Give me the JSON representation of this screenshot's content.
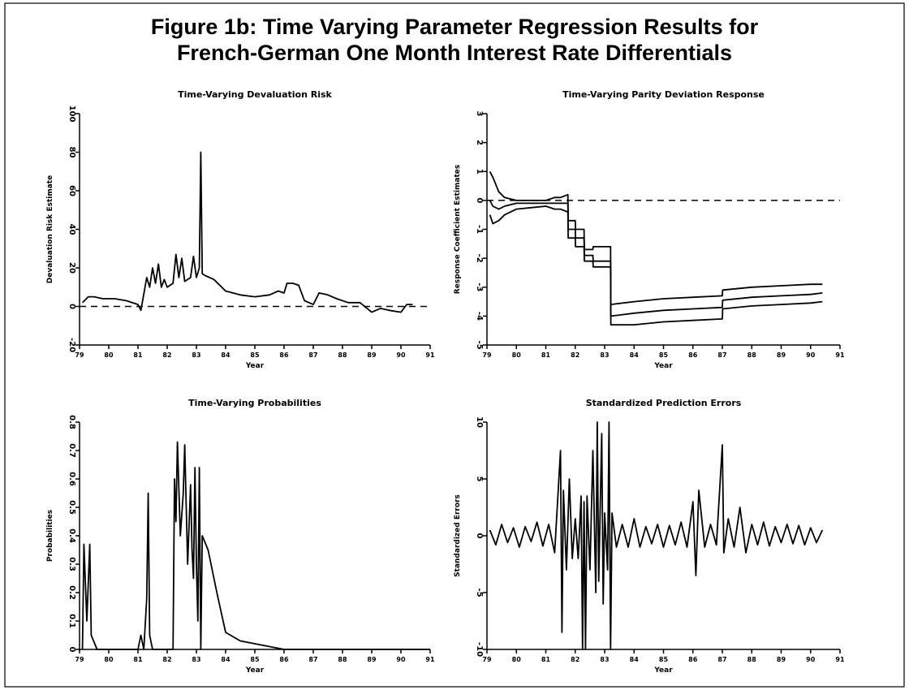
{
  "title": [
    "Figure 1b: Time Varying Parameter Regression Results for",
    "French-German One Month Interest Rate Differentials"
  ],
  "chart_data": [
    {
      "type": "line",
      "title": "Time-Varying Devaluation Risk",
      "x_label": "Year",
      "y_label": "Devaluation Risk Estimate",
      "xlim": [
        79,
        91
      ],
      "xticks": [
        79,
        80,
        81,
        82,
        83,
        84,
        85,
        86,
        87,
        88,
        89,
        90,
        91
      ],
      "ylim": [
        -20,
        100
      ],
      "yticks": [
        -20,
        0,
        20,
        40,
        60,
        80,
        100
      ],
      "hline": 0,
      "x": [
        79.1,
        79.3,
        79.5,
        79.8,
        80.2,
        80.6,
        81.0,
        81.1,
        81.3,
        81.4,
        81.5,
        81.6,
        81.7,
        81.8,
        81.9,
        82.0,
        82.2,
        82.3,
        82.4,
        82.5,
        82.6,
        82.8,
        82.9,
        83.0,
        83.1,
        83.15,
        83.2,
        83.3,
        83.6,
        84.0,
        84.5,
        85.0,
        85.5,
        85.8,
        86.0,
        86.1,
        86.3,
        86.5,
        86.7,
        87.0,
        87.2,
        87.5,
        87.8,
        88.2,
        88.6,
        89.0,
        89.3,
        89.6,
        90.0,
        90.2,
        90.4
      ],
      "series": [
        {
          "color": "#000000",
          "values": [
            2,
            5,
            5,
            4,
            4,
            3,
            1,
            -2,
            15,
            10,
            20,
            12,
            22,
            10,
            14,
            10,
            12,
            27,
            15,
            25,
            13,
            15,
            26,
            15,
            20,
            80,
            17,
            16,
            14,
            8,
            6,
            5,
            6,
            8,
            7,
            12,
            12,
            11,
            3,
            1,
            7,
            6,
            4,
            2,
            2,
            -3,
            -1,
            -2,
            -3,
            1,
            1
          ]
        }
      ]
    },
    {
      "type": "line",
      "title": "Time-Varying Parity Deviation Response",
      "x_label": "Year",
      "y_label": "Response Coefficient Estimates",
      "xlim": [
        79,
        91
      ],
      "xticks": [
        79,
        80,
        81,
        82,
        83,
        84,
        85,
        86,
        87,
        88,
        89,
        90,
        91
      ],
      "ylim": [
        -5,
        3
      ],
      "yticks": [
        -5,
        -4,
        -3,
        -2,
        -1,
        0,
        1,
        2,
        3
      ],
      "hline": 0,
      "x": [
        79.1,
        79.2,
        79.4,
        79.6,
        80.0,
        80.5,
        81.0,
        81.3,
        81.5,
        81.75,
        81.76,
        82.0,
        82.01,
        82.3,
        82.31,
        82.6,
        82.61,
        83.0,
        83.2,
        83.21,
        84.0,
        85.0,
        86.0,
        87.0,
        87.01,
        88.0,
        89.0,
        90.0,
        90.4
      ],
      "series": [
        {
          "color": "#000000",
          "values": [
            0,
            -0.2,
            -0.3,
            -0.2,
            -0.1,
            -0.1,
            -0.1,
            -0.1,
            -0.1,
            -0.1,
            -1,
            -1,
            -1.3,
            -1.3,
            -1.9,
            -1.9,
            -2.1,
            -2.1,
            -2.1,
            -4,
            -3.9,
            -3.8,
            -3.75,
            -3.7,
            -3.45,
            -3.35,
            -3.3,
            -3.25,
            -3.2
          ]
        },
        {
          "color": "#000000",
          "values": [
            1,
            0.8,
            0.3,
            0.1,
            0,
            0,
            0,
            0.1,
            0.1,
            0.2,
            -0.7,
            -0.7,
            -1,
            -1,
            -1.7,
            -1.7,
            -1.6,
            -1.6,
            -1.6,
            -3.6,
            -3.5,
            -3.4,
            -3.35,
            -3.3,
            -3.1,
            -3.0,
            -2.95,
            -2.9,
            -2.9
          ]
        },
        {
          "color": "#000000",
          "values": [
            -0.5,
            -0.8,
            -0.7,
            -0.5,
            -0.3,
            -0.25,
            -0.2,
            -0.3,
            -0.3,
            -0.4,
            -1.3,
            -1.3,
            -1.6,
            -1.6,
            -2.1,
            -2.1,
            -2.3,
            -2.3,
            -2.3,
            -4.3,
            -4.3,
            -4.2,
            -4.15,
            -4.1,
            -3.75,
            -3.65,
            -3.6,
            -3.55,
            -3.5
          ]
        }
      ]
    },
    {
      "type": "line",
      "title": "Time-Varying Probabilities",
      "x_label": "Year",
      "y_label": "Probabilities",
      "xlim": [
        79,
        91
      ],
      "xticks": [
        79,
        80,
        81,
        82,
        83,
        84,
        85,
        86,
        87,
        88,
        89,
        90,
        91
      ],
      "ylim": [
        0,
        0.8
      ],
      "yticks": [
        0,
        0.1,
        0.2,
        0.3,
        0.4,
        0.5,
        0.6,
        0.7,
        0.8
      ],
      "x": [
        79.1,
        79.15,
        79.25,
        79.35,
        79.4,
        79.6,
        80.5,
        81.0,
        81.1,
        81.2,
        81.3,
        81.35,
        81.4,
        81.5,
        82.2,
        82.25,
        82.3,
        82.35,
        82.45,
        82.55,
        82.6,
        82.7,
        82.8,
        82.85,
        82.9,
        82.95,
        83.0,
        83.05,
        83.1,
        83.15,
        83.2,
        83.4,
        83.7,
        84.0,
        84.5,
        85.0,
        85.5,
        86.0,
        88.0,
        90.0,
        91.0
      ],
      "series": [
        {
          "color": "#000000",
          "values": [
            0,
            0.37,
            0.1,
            0.37,
            0.05,
            0,
            0,
            0,
            0.05,
            0,
            0.18,
            0.55,
            0.05,
            0,
            0,
            0.6,
            0.45,
            0.73,
            0.4,
            0.55,
            0.72,
            0.3,
            0.58,
            0.35,
            0.25,
            0.64,
            0.3,
            0.1,
            0.64,
            0,
            0.4,
            0.35,
            0.2,
            0.06,
            0.03,
            0.02,
            0.01,
            0,
            0,
            0,
            0
          ]
        }
      ]
    },
    {
      "type": "line",
      "title": "Standardized Prediction Errors",
      "x_label": "Year",
      "y_label": "Standardized Errors",
      "xlim": [
        79,
        91
      ],
      "xticks": [
        79,
        80,
        81,
        82,
        83,
        84,
        85,
        86,
        87,
        88,
        89,
        90,
        91
      ],
      "ylim": [
        -10,
        10
      ],
      "yticks": [
        -10,
        -5,
        0,
        5,
        10
      ],
      "x": [
        79.1,
        79.3,
        79.5,
        79.7,
        79.9,
        80.1,
        80.3,
        80.5,
        80.7,
        80.9,
        81.1,
        81.3,
        81.5,
        81.55,
        81.6,
        81.7,
        81.8,
        81.9,
        82.0,
        82.1,
        82.2,
        82.25,
        82.3,
        82.35,
        82.4,
        82.5,
        82.6,
        82.7,
        82.75,
        82.8,
        82.9,
        82.95,
        83.0,
        83.1,
        83.15,
        83.2,
        83.25,
        83.4,
        83.6,
        83.8,
        84.0,
        84.2,
        84.4,
        84.6,
        84.8,
        85.0,
        85.2,
        85.4,
        85.6,
        85.8,
        86.0,
        86.1,
        86.2,
        86.4,
        86.6,
        86.8,
        87.0,
        87.05,
        87.2,
        87.4,
        87.6,
        87.8,
        88.0,
        88.2,
        88.4,
        88.6,
        88.8,
        89.0,
        89.2,
        89.4,
        89.6,
        89.8,
        90.0,
        90.2,
        90.4
      ],
      "series": [
        {
          "color": "#000000",
          "values": [
            0.5,
            -0.8,
            1,
            -0.6,
            0.7,
            -1,
            0.8,
            -0.5,
            1.2,
            -0.9,
            1,
            -1.5,
            7.5,
            -8.5,
            4,
            -3,
            5,
            -2,
            1.5,
            -2,
            3.5,
            -10,
            3,
            -10,
            3.5,
            -3,
            7.5,
            -5,
            10,
            -4,
            9,
            -6,
            2,
            -3,
            10,
            -10,
            2,
            -1,
            1,
            -1,
            1.5,
            -1,
            0.8,
            -0.7,
            1,
            -1,
            0.9,
            -0.8,
            1.2,
            -1,
            3,
            -3.5,
            4,
            -1,
            1,
            -0.8,
            8,
            -1.5,
            1.5,
            -1,
            2.5,
            -1.5,
            1,
            -0.8,
            1.2,
            -0.9,
            0.8,
            -0.6,
            1,
            -0.7,
            0.9,
            -0.8,
            0.7,
            -0.6,
            0.5
          ]
        }
      ]
    }
  ]
}
